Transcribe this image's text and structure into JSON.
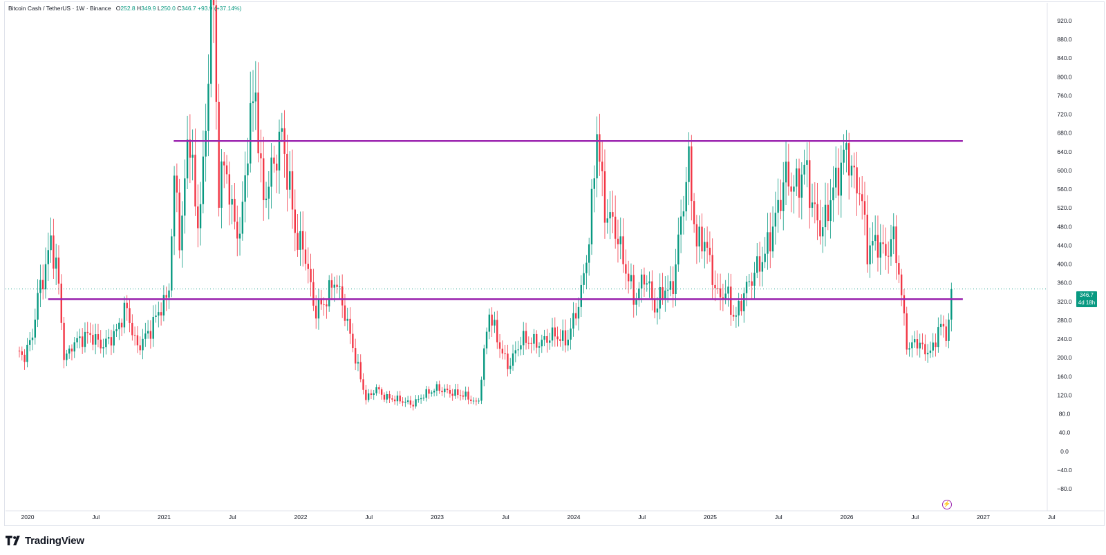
{
  "legend": {
    "symbol": "Bitcoin Cash / TetherUS · 1W · Binance",
    "open_label": "O",
    "open": "252.8",
    "high_label": "H",
    "high": "349.9",
    "low_label": "L",
    "low": "250.0",
    "close_label": "C",
    "close": "346.7",
    "change": "+93.9 (+37.14%)"
  },
  "price_badge": {
    "price": "346.7",
    "countdown": "4d 18h"
  },
  "brand": {
    "name": "TradingView"
  },
  "colors": {
    "up": "#089981",
    "down": "#f23645",
    "level_line": "#9c27b0",
    "grid": "#e0e3eb"
  },
  "icons": {
    "bolt": "lightning-bolt-icon",
    "logo": "tradingview-logo-icon"
  },
  "chart_data": {
    "type": "candlestick",
    "interval": "1W",
    "ylim": [
      -100,
      940
    ],
    "y_ticks": [
      920,
      880,
      840,
      800,
      760,
      720,
      680,
      640,
      600,
      560,
      520,
      480,
      440,
      400,
      360,
      320,
      280,
      240,
      200,
      160,
      120,
      80,
      40,
      0,
      -40,
      -80
    ],
    "y_tick_labels": [
      "920.0",
      "880.0",
      "840.0",
      "800.0",
      "760.0",
      "720.0",
      "680.0",
      "640.0",
      "600.0",
      "560.0",
      "520.0",
      "480.0",
      "440.0",
      "400.0",
      "360.0",
      "320.0",
      "280.0",
      "240.0",
      "200.0",
      "160.0",
      "120.0",
      "80.0",
      "40.0",
      "0.0",
      "−40.0",
      "−80.0"
    ],
    "x_ticks": [
      {
        "t": 2020.0,
        "label": "2020"
      },
      {
        "t": 2020.5,
        "label": "Jul"
      },
      {
        "t": 2021.0,
        "label": "2021"
      },
      {
        "t": 2021.5,
        "label": "Jul"
      },
      {
        "t": 2022.0,
        "label": "2022"
      },
      {
        "t": 2022.5,
        "label": "Jul"
      },
      {
        "t": 2023.0,
        "label": "2023"
      },
      {
        "t": 2023.5,
        "label": "Jul"
      },
      {
        "t": 2024.0,
        "label": "2024"
      },
      {
        "t": 2024.5,
        "label": "Jul"
      },
      {
        "t": 2025.0,
        "label": "2025"
      },
      {
        "t": 2025.5,
        "label": "Jul"
      },
      {
        "t": 2026.0,
        "label": "2026"
      },
      {
        "t": 2026.5,
        "label": "Jul"
      },
      {
        "t": 2027.0,
        "label": "2027"
      },
      {
        "t": 2027.5,
        "label": "Jul"
      }
    ],
    "horizontal_levels": [
      {
        "price": 663,
        "from": 2021.07,
        "to": 2026.85
      },
      {
        "price": 325,
        "from": 2020.15,
        "to": 2026.85
      }
    ],
    "last_price": 346.7,
    "anchors": [
      [
        2019.92,
        215
      ],
      [
        2019.97,
        200
      ],
      [
        2020.03,
        240
      ],
      [
        2020.08,
        340
      ],
      [
        2020.13,
        390
      ],
      [
        2020.17,
        450
      ],
      [
        2020.22,
        380
      ],
      [
        2020.27,
        190
      ],
      [
        2020.33,
        230
      ],
      [
        2020.45,
        250
      ],
      [
        2020.55,
        225
      ],
      [
        2020.65,
        255
      ],
      [
        2020.72,
        310
      ],
      [
        2020.8,
        220
      ],
      [
        2020.9,
        260
      ],
      [
        2020.96,
        300
      ],
      [
        2021.03,
        330
      ],
      [
        2021.08,
        600
      ],
      [
        2021.12,
        430
      ],
      [
        2021.18,
        710
      ],
      [
        2021.24,
        470
      ],
      [
        2021.3,
        640
      ],
      [
        2021.35,
        1050
      ],
      [
        2021.4,
        560
      ],
      [
        2021.45,
        620
      ],
      [
        2021.5,
        500
      ],
      [
        2021.56,
        460
      ],
      [
        2021.62,
        690
      ],
      [
        2021.67,
        770
      ],
      [
        2021.72,
        530
      ],
      [
        2021.8,
        610
      ],
      [
        2021.86,
        680
      ],
      [
        2021.92,
        560
      ],
      [
        2021.97,
        450
      ],
      [
        2022.03,
        430
      ],
      [
        2022.1,
        300
      ],
      [
        2022.18,
        320
      ],
      [
        2022.25,
        370
      ],
      [
        2022.32,
        300
      ],
      [
        2022.4,
        200
      ],
      [
        2022.48,
        110
      ],
      [
        2022.55,
        135
      ],
      [
        2022.62,
        115
      ],
      [
        2022.72,
        110
      ],
      [
        2022.82,
        100
      ],
      [
        2022.9,
        120
      ],
      [
        2023.0,
        135
      ],
      [
        2023.1,
        125
      ],
      [
        2023.2,
        120
      ],
      [
        2023.3,
        100
      ],
      [
        2023.38,
        300
      ],
      [
        2023.45,
        230
      ],
      [
        2023.52,
        180
      ],
      [
        2023.62,
        240
      ],
      [
        2023.75,
        230
      ],
      [
        2023.85,
        250
      ],
      [
        2023.95,
        235
      ],
      [
        2024.05,
        330
      ],
      [
        2024.12,
        470
      ],
      [
        2024.17,
        690
      ],
      [
        2024.22,
        520
      ],
      [
        2024.3,
        480
      ],
      [
        2024.37,
        400
      ],
      [
        2024.45,
        320
      ],
      [
        2024.52,
        380
      ],
      [
        2024.6,
        300
      ],
      [
        2024.66,
        350
      ],
      [
        2024.72,
        340
      ],
      [
        2024.78,
        480
      ],
      [
        2024.84,
        620
      ],
      [
        2024.9,
        440
      ],
      [
        2024.95,
        460
      ],
      [
        2025.0,
        400
      ],
      [
        2025.05,
        330
      ],
      [
        2025.12,
        340
      ],
      [
        2025.18,
        280
      ],
      [
        2025.25,
        340
      ],
      [
        2025.32,
        380
      ],
      [
        2025.4,
        420
      ],
      [
        2025.48,
        500
      ],
      [
        2025.55,
        590
      ],
      [
        2025.62,
        560
      ],
      [
        2025.7,
        610
      ],
      [
        2025.75,
        520
      ],
      [
        2025.82,
        470
      ],
      [
        2025.88,
        540
      ],
      [
        2025.95,
        600
      ],
      [
        2026.0,
        650
      ],
      [
        2026.05,
        580
      ],
      [
        2026.1,
        560
      ],
      [
        2026.15,
        430
      ],
      [
        2026.22,
        450
      ],
      [
        2026.28,
        420
      ],
      [
        2026.35,
        460
      ],
      [
        2026.4,
        330
      ],
      [
        2026.45,
        210
      ],
      [
        2026.5,
        240
      ],
      [
        2026.55,
        220
      ],
      [
        2026.62,
        210
      ],
      [
        2026.68,
        270
      ],
      [
        2026.74,
        250
      ],
      [
        2026.77,
        346.7
      ]
    ]
  }
}
